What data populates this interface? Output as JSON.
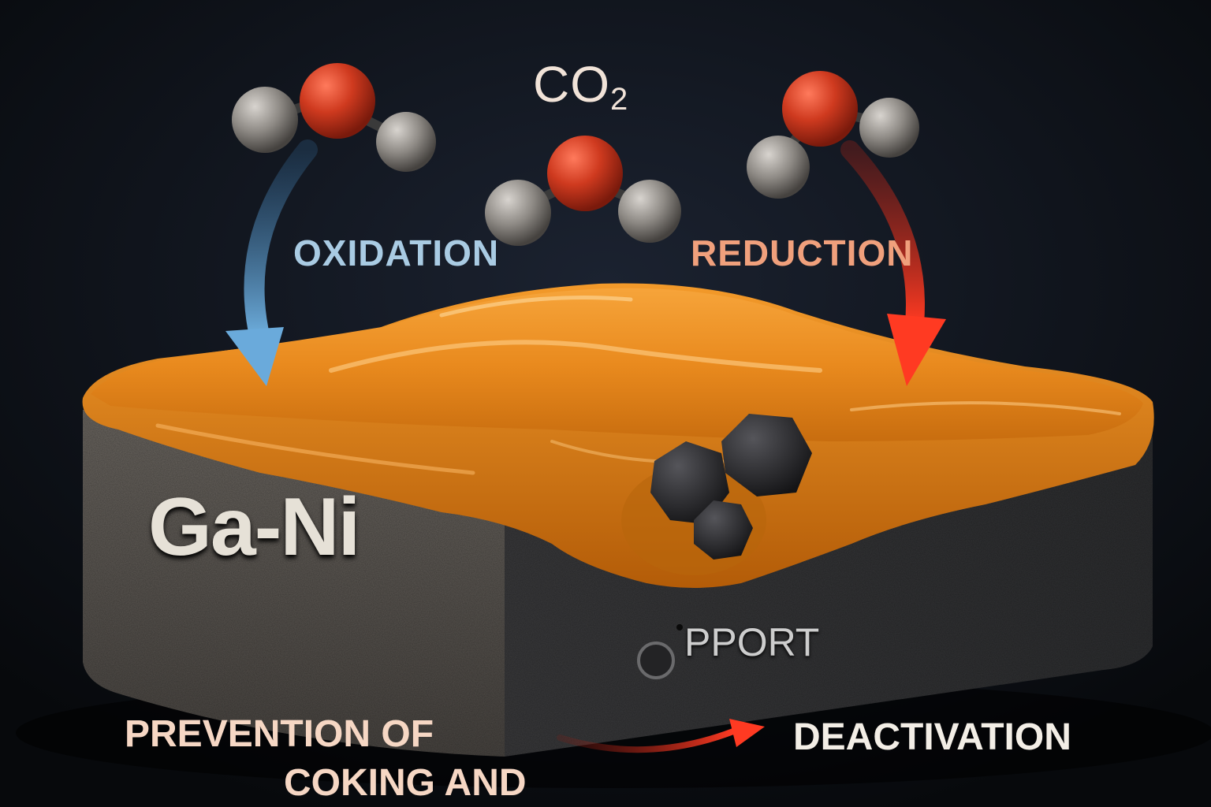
{
  "labels": {
    "co2_main": "CO",
    "co2_sub": "2",
    "oxidation": "OXIDATION",
    "reduction": "REDUCTION",
    "alloy": "Ga-Ni",
    "support": "PPORT",
    "prevention_line1": "PREVENTION OF",
    "prevention_line2": "COKING AND",
    "deactivation": "DEACTIVATION"
  },
  "colors": {
    "background": "#0d1117",
    "liquid_metal": "#e8861c",
    "support_block": "#5f5a55",
    "oxygen_atom": "#c5341d",
    "carbon_atom": "#8c8884",
    "oxidation_arrow": "#5b9bd0",
    "reduction_arrow": "#e23a2a",
    "coke_particle": "#1e1e20"
  },
  "molecules": [
    {
      "name": "molecule-left"
    },
    {
      "name": "molecule-center"
    },
    {
      "name": "molecule-right"
    }
  ],
  "coke_particles": 3
}
